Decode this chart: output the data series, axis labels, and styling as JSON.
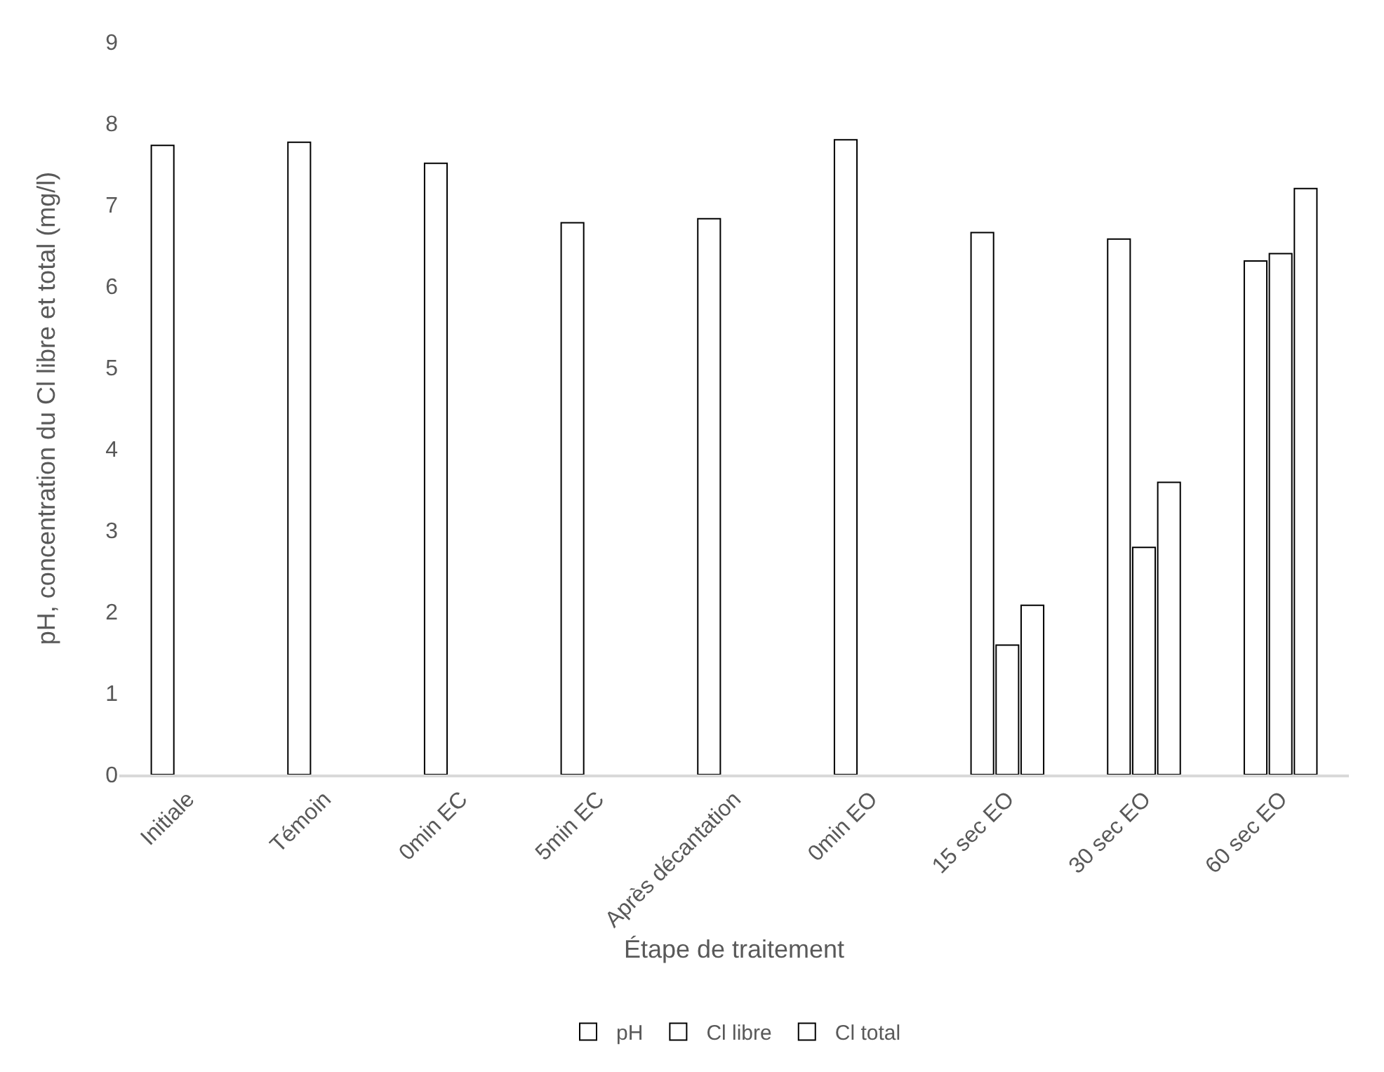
{
  "chart_data": {
    "type": "bar",
    "xlabel": "Étape de traitement",
    "ylabel": "pH, concentration du Cl libre et total (mg/l)",
    "categories": [
      "Initiale",
      "Témoin",
      "0min EC",
      "5min EC",
      "Après décantation",
      "0min EO",
      "15 sec EO",
      "30 sec EO",
      "60 sec EO"
    ],
    "series": [
      {
        "name": "pH",
        "color": "#ffffff",
        "values": [
          7.73,
          7.77,
          7.51,
          6.78,
          6.83,
          7.8,
          6.66,
          6.58,
          6.31
        ]
      },
      {
        "name": "Cl libre",
        "color": "#ffffff",
        "values": [
          null,
          null,
          null,
          null,
          null,
          null,
          1.59,
          2.79,
          6.4
        ]
      },
      {
        "name": "Cl total",
        "color": "#ffffff",
        "values": [
          null,
          null,
          null,
          null,
          null,
          null,
          2.08,
          3.59,
          7.2
        ]
      }
    ],
    "ylim": [
      0,
      9
    ],
    "yticks": [
      0,
      1,
      2,
      3,
      4,
      5,
      6,
      7,
      8,
      9
    ],
    "grid": false,
    "legend": "bottom"
  }
}
